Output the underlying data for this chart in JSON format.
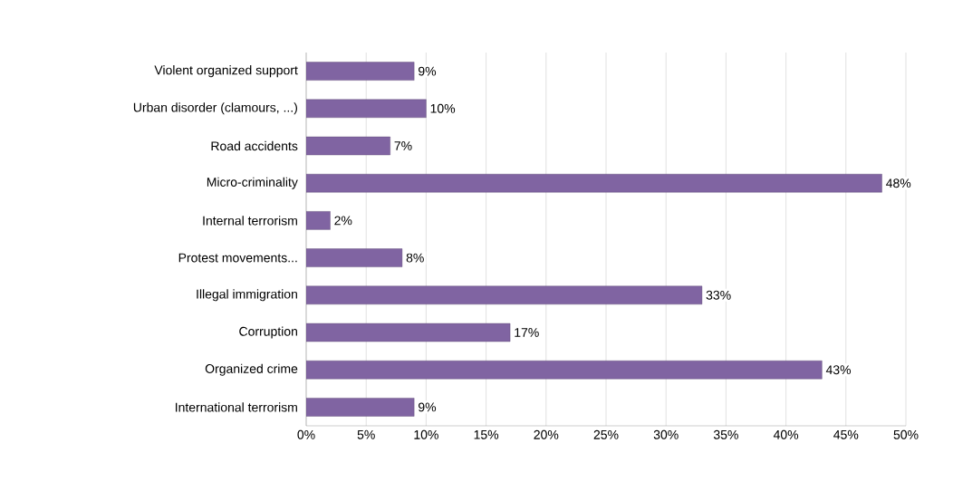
{
  "chart_data": {
    "type": "bar",
    "orientation": "horizontal",
    "categories": [
      "Violent organized support",
      "Urban disorder (clamours, ...)",
      "Road accidents",
      "Micro-criminality",
      "Internal terrorism",
      "Protest movements...",
      "Illegal immigration",
      "Corruption",
      "Organized crime",
      "International terrorism"
    ],
    "values": [
      9,
      10,
      7,
      48,
      2,
      8,
      33,
      17,
      43,
      9
    ],
    "value_labels": [
      "9%",
      "10%",
      "7%",
      "48%",
      "2%",
      "8%",
      "33%",
      "17%",
      "43%",
      "9%"
    ],
    "color": "#8064a2",
    "xlim": [
      0,
      50
    ],
    "xticks": [
      {
        "value": 0,
        "label": "0%"
      },
      {
        "value": 5,
        "label": "5%"
      },
      {
        "value": 10,
        "label": "10%"
      },
      {
        "value": 15,
        "label": "15%"
      },
      {
        "value": 20,
        "label": "20%"
      },
      {
        "value": 25,
        "label": "25%"
      },
      {
        "value": 30,
        "label": "30%"
      },
      {
        "value": 35,
        "label": "35%"
      },
      {
        "value": 40,
        "label": "40%"
      },
      {
        "value": 45,
        "label": "45%"
      },
      {
        "value": 50,
        "label": "50%"
      }
    ],
    "grid": "x"
  }
}
